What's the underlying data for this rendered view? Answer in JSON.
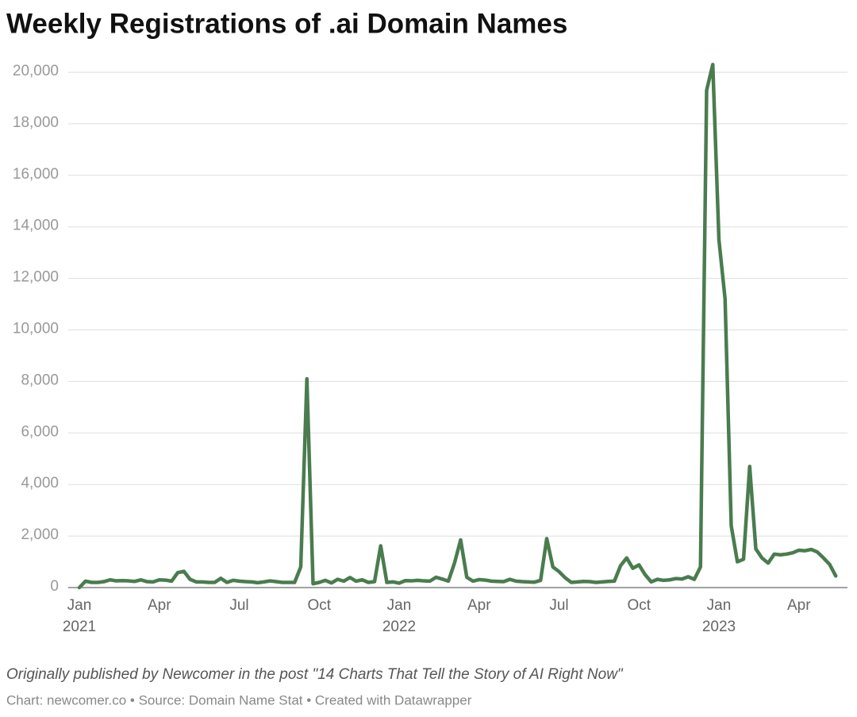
{
  "chart_data": {
    "type": "line",
    "title": "Weekly Registrations of .ai Domain Names",
    "subtitle": "Originally published by Newcomer in the post \"14 Charts That Tell the Story of AI Right Now\"",
    "footer": "Chart: newcomer.co • Source: Domain Name Stat • Created with Datawrapper",
    "categories": [
      "Jan 2021",
      null,
      null,
      null,
      null,
      null,
      null,
      null,
      null,
      null,
      null,
      null,
      null,
      "Apr",
      null,
      null,
      null,
      null,
      null,
      null,
      null,
      null,
      null,
      null,
      null,
      null,
      "Jul",
      null,
      null,
      null,
      null,
      null,
      null,
      null,
      null,
      null,
      null,
      null,
      null,
      "Oct",
      null,
      null,
      null,
      null,
      null,
      null,
      null,
      null,
      null,
      null,
      null,
      null,
      "Jan 2022",
      null,
      null,
      null,
      null,
      null,
      null,
      null,
      null,
      null,
      null,
      null,
      null,
      "Apr",
      null,
      null,
      null,
      null,
      null,
      null,
      null,
      null,
      null,
      null,
      null,
      null,
      "Jul",
      null,
      null,
      null,
      null,
      null,
      null,
      null,
      null,
      null,
      null,
      null,
      null,
      "Oct",
      null,
      null,
      null,
      null,
      null,
      null,
      null,
      null,
      null,
      null,
      null,
      null,
      "Jan 2023",
      null,
      null,
      null,
      null,
      null,
      null,
      null,
      null,
      null,
      null,
      null,
      null,
      "Apr",
      null,
      null,
      null,
      null,
      null,
      null
    ],
    "values": [
      0,
      250,
      200,
      200,
      230,
      300,
      260,
      270,
      260,
      240,
      300,
      230,
      220,
      300,
      290,
      250,
      580,
      630,
      320,
      220,
      220,
      200,
      200,
      360,
      200,
      280,
      250,
      230,
      220,
      190,
      220,
      260,
      230,
      200,
      200,
      200,
      800,
      8100,
      150,
      200,
      280,
      180,
      320,
      250,
      390,
      250,
      300,
      200,
      230,
      1620,
      200,
      220,
      170,
      270,
      260,
      280,
      260,
      250,
      400,
      330,
      250,
      950,
      1850,
      400,
      250,
      310,
      290,
      250,
      240,
      230,
      320,
      250,
      230,
      220,
      210,
      280,
      1900,
      800,
      620,
      380,
      200,
      220,
      240,
      230,
      200,
      220,
      240,
      250,
      850,
      1150,
      750,
      880,
      500,
      220,
      320,
      280,
      300,
      350,
      330,
      420,
      320,
      800,
      19300,
      20300,
      13500,
      11200,
      2400,
      1000,
      1100,
      4700,
      1500,
      1150,
      950,
      1300,
      1270,
      1300,
      1350,
      1450,
      1430,
      1480,
      1380,
      1150,
      900,
      450
    ],
    "color": "#4a7c4e",
    "ylim": [
      0,
      20000
    ],
    "yticks": [
      0,
      {
        "value": 2000,
        "label": "2,000"
      },
      {
        "value": 4000,
        "label": "4,000"
      },
      {
        "value": 6000,
        "label": "6,000"
      },
      {
        "value": 8000,
        "label": "8,000"
      },
      {
        "value": 10000,
        "label": "10,000"
      },
      {
        "value": 12000,
        "label": "12,000"
      },
      {
        "value": 14000,
        "label": "14,000"
      },
      {
        "value": 16000,
        "label": "16,000"
      },
      {
        "value": 18000,
        "label": "18,000"
      },
      {
        "value": 20000,
        "label": "20,000"
      }
    ],
    "grid": true
  }
}
